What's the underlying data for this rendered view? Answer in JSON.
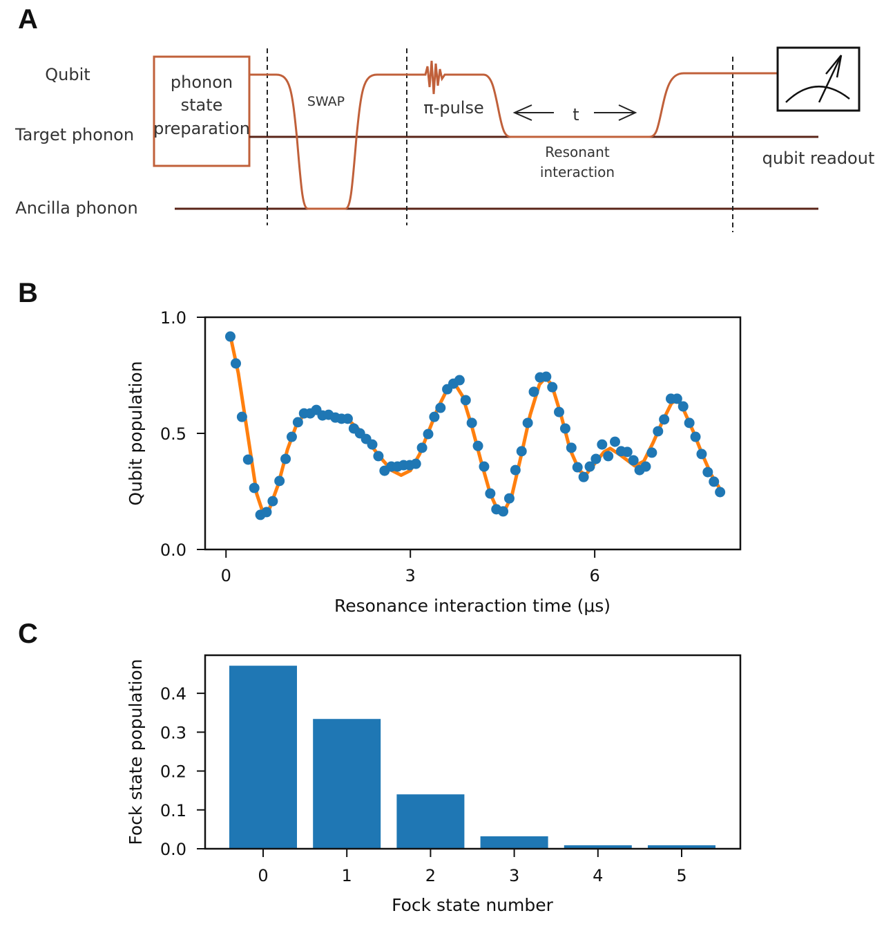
{
  "panels": {
    "a": {
      "letter": "A",
      "row_labels": {
        "qubit": "Qubit",
        "target": "Target phonon",
        "ancilla": "Ancilla phonon"
      },
      "prep_box": [
        "phonon",
        "state",
        "preparation"
      ],
      "swap_label": "SWAP",
      "pi_pulse_label": "π-pulse",
      "t_label": "t",
      "resonant_label": [
        "Resonant",
        "interaction"
      ],
      "readout_label": "qubit readout",
      "colors": {
        "qubit_line": "#c0603a",
        "phonon_line": "#5a2418",
        "box": "#c0603a"
      }
    },
    "b": {
      "letter": "B"
    },
    "c": {
      "letter": "C"
    }
  },
  "chart_data": [
    {
      "type": "scatter",
      "title": "",
      "xlabel": "Resonance interaction time (μs)",
      "ylabel": "Qubit population",
      "xlim": [
        -0.34,
        8.37
      ],
      "ylim": [
        0.0,
        1.0
      ],
      "xticks": [
        0,
        3,
        6
      ],
      "xtick_labels": [
        "0",
        "3",
        "6"
      ],
      "yticks": [
        0.0,
        0.5,
        1.0
      ],
      "ytick_labels": [
        "0.0",
        "0.5",
        "1.0"
      ],
      "grid": false,
      "legend": "none",
      "series": [
        {
          "name": "measured",
          "style": "markers",
          "color": "#1f77b4",
          "points": [
            [
              0.07,
              0.917
            ],
            [
              0.16,
              0.801
            ],
            [
              0.26,
              0.571
            ],
            [
              0.36,
              0.387
            ],
            [
              0.46,
              0.265
            ],
            [
              0.56,
              0.149
            ],
            [
              0.66,
              0.161
            ],
            [
              0.76,
              0.208
            ],
            [
              0.87,
              0.295
            ],
            [
              0.97,
              0.39
            ],
            [
              1.07,
              0.485
            ],
            [
              1.17,
              0.548
            ],
            [
              1.27,
              0.586
            ],
            [
              1.37,
              0.586
            ],
            [
              1.47,
              0.601
            ],
            [
              1.57,
              0.577
            ],
            [
              1.67,
              0.58
            ],
            [
              1.78,
              0.568
            ],
            [
              1.88,
              0.563
            ],
            [
              1.98,
              0.563
            ],
            [
              2.08,
              0.521
            ],
            [
              2.18,
              0.5
            ],
            [
              2.28,
              0.476
            ],
            [
              2.38,
              0.452
            ],
            [
              2.48,
              0.402
            ],
            [
              2.58,
              0.339
            ],
            [
              2.69,
              0.357
            ],
            [
              2.79,
              0.357
            ],
            [
              2.89,
              0.363
            ],
            [
              2.99,
              0.363
            ],
            [
              3.09,
              0.369
            ],
            [
              3.19,
              0.438
            ],
            [
              3.29,
              0.497
            ],
            [
              3.39,
              0.571
            ],
            [
              3.49,
              0.61
            ],
            [
              3.6,
              0.69
            ],
            [
              3.7,
              0.714
            ],
            [
              3.8,
              0.729
            ],
            [
              3.9,
              0.643
            ],
            [
              4.0,
              0.545
            ],
            [
              4.1,
              0.446
            ],
            [
              4.2,
              0.357
            ],
            [
              4.3,
              0.241
            ],
            [
              4.4,
              0.173
            ],
            [
              4.51,
              0.164
            ],
            [
              4.61,
              0.22
            ],
            [
              4.71,
              0.342
            ],
            [
              4.81,
              0.423
            ],
            [
              4.91,
              0.545
            ],
            [
              5.01,
              0.679
            ],
            [
              5.11,
              0.741
            ],
            [
              5.21,
              0.744
            ],
            [
              5.31,
              0.699
            ],
            [
              5.42,
              0.592
            ],
            [
              5.52,
              0.521
            ],
            [
              5.62,
              0.438
            ],
            [
              5.72,
              0.354
            ],
            [
              5.82,
              0.312
            ],
            [
              5.92,
              0.357
            ],
            [
              6.02,
              0.39
            ],
            [
              6.12,
              0.452
            ],
            [
              6.22,
              0.402
            ],
            [
              6.33,
              0.464
            ],
            [
              6.43,
              0.423
            ],
            [
              6.53,
              0.42
            ],
            [
              6.63,
              0.384
            ],
            [
              6.73,
              0.342
            ],
            [
              6.83,
              0.357
            ],
            [
              6.93,
              0.417
            ],
            [
              7.03,
              0.509
            ],
            [
              7.13,
              0.56
            ],
            [
              7.24,
              0.649
            ],
            [
              7.34,
              0.649
            ],
            [
              7.44,
              0.616
            ],
            [
              7.54,
              0.545
            ],
            [
              7.64,
              0.485
            ],
            [
              7.74,
              0.411
            ],
            [
              7.84,
              0.333
            ],
            [
              7.94,
              0.292
            ],
            [
              8.04,
              0.247
            ]
          ]
        },
        {
          "name": "fit",
          "style": "line",
          "color": "#ff7f0e",
          "points": [
            [
              0.07,
              0.92
            ],
            [
              0.2,
              0.76
            ],
            [
              0.35,
              0.5
            ],
            [
              0.5,
              0.24
            ],
            [
              0.6,
              0.16
            ],
            [
              0.7,
              0.17
            ],
            [
              0.85,
              0.28
            ],
            [
              1.0,
              0.43
            ],
            [
              1.15,
              0.54
            ],
            [
              1.3,
              0.59
            ],
            [
              1.45,
              0.6
            ],
            [
              1.6,
              0.585
            ],
            [
              1.8,
              0.57
            ],
            [
              2.0,
              0.555
            ],
            [
              2.15,
              0.52
            ],
            [
              2.3,
              0.47
            ],
            [
              2.5,
              0.4
            ],
            [
              2.7,
              0.34
            ],
            [
              2.85,
              0.32
            ],
            [
              3.0,
              0.34
            ],
            [
              3.15,
              0.41
            ],
            [
              3.3,
              0.51
            ],
            [
              3.45,
              0.61
            ],
            [
              3.6,
              0.69
            ],
            [
              3.72,
              0.715
            ],
            [
              3.85,
              0.66
            ],
            [
              4.0,
              0.53
            ],
            [
              4.15,
              0.38
            ],
            [
              4.3,
              0.24
            ],
            [
              4.42,
              0.17
            ],
            [
              4.52,
              0.16
            ],
            [
              4.65,
              0.23
            ],
            [
              4.8,
              0.4
            ],
            [
              4.95,
              0.58
            ],
            [
              5.1,
              0.71
            ],
            [
              5.2,
              0.74
            ],
            [
              5.3,
              0.71
            ],
            [
              5.45,
              0.58
            ],
            [
              5.6,
              0.43
            ],
            [
              5.75,
              0.34
            ],
            [
              5.85,
              0.32
            ],
            [
              6.0,
              0.37
            ],
            [
              6.15,
              0.42
            ],
            [
              6.25,
              0.435
            ],
            [
              6.4,
              0.41
            ],
            [
              6.55,
              0.38
            ],
            [
              6.65,
              0.36
            ],
            [
              6.8,
              0.38
            ],
            [
              6.95,
              0.46
            ],
            [
              7.1,
              0.55
            ],
            [
              7.25,
              0.63
            ],
            [
              7.35,
              0.645
            ],
            [
              7.45,
              0.6
            ],
            [
              7.6,
              0.51
            ],
            [
              7.75,
              0.41
            ],
            [
              7.9,
              0.32
            ],
            [
              8.04,
              0.26
            ]
          ]
        }
      ]
    },
    {
      "type": "bar",
      "title": "",
      "xlabel": "Fock state number",
      "ylabel": "Fock state population",
      "categories": [
        "0",
        "1",
        "2",
        "3",
        "4",
        "5"
      ],
      "values": [
        0.471,
        0.334,
        0.14,
        0.032,
        0.009,
        0.009
      ],
      "ylim": [
        0.0,
        0.498
      ],
      "yticks": [
        0.0,
        0.1,
        0.2,
        0.3,
        0.4
      ],
      "ytick_labels": [
        "0.0",
        "0.1",
        "0.2",
        "0.3",
        "0.4"
      ],
      "grid": false,
      "legend": "none",
      "color": "#1f77b4"
    }
  ]
}
